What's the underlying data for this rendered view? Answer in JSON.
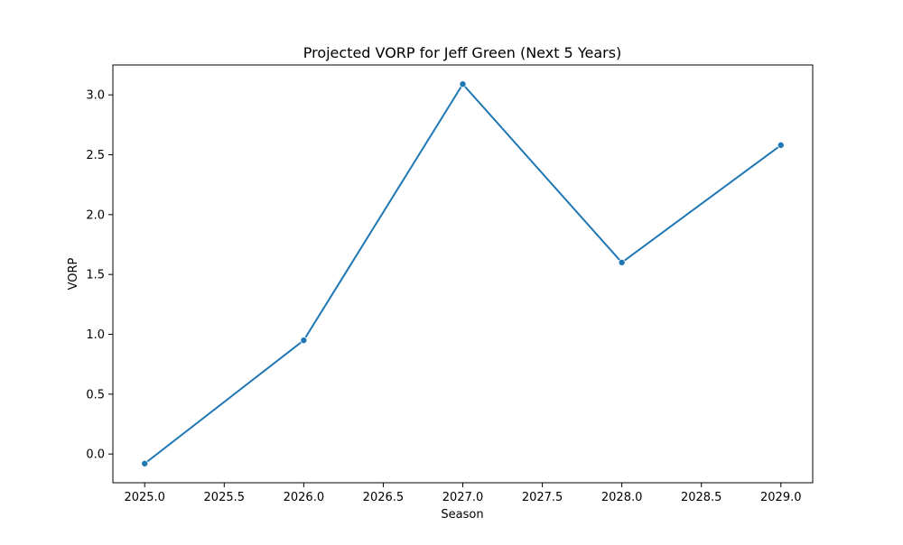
{
  "chart_data": {
    "type": "line",
    "title": "Projected VORP for Jeff Green (Next 5 Years)",
    "xlabel": "Season",
    "ylabel": "VORP",
    "x": [
      2025.0,
      2026.0,
      2027.0,
      2028.0,
      2029.0
    ],
    "series": [
      {
        "values": [
          -0.08,
          0.95,
          3.09,
          1.6,
          2.58
        ],
        "color": "#1f77b4",
        "marker": "circle"
      }
    ],
    "xlim": [
      2024.8,
      2029.2
    ],
    "ylim": [
      -0.24,
      3.25
    ],
    "xticks": [
      2025.0,
      2025.5,
      2026.0,
      2026.5,
      2027.0,
      2027.5,
      2028.0,
      2028.5,
      2029.0
    ],
    "xtick_labels": [
      "2025.0",
      "2025.5",
      "2026.0",
      "2026.5",
      "2027.0",
      "2027.5",
      "2028.0",
      "2028.5",
      "2029.0"
    ],
    "yticks": [
      0.0,
      0.5,
      1.0,
      1.5,
      2.0,
      2.5,
      3.0
    ],
    "ytick_labels": [
      "0.0",
      "0.5",
      "1.0",
      "1.5",
      "2.0",
      "2.5",
      "3.0"
    ],
    "grid": false,
    "legend": "none"
  }
}
